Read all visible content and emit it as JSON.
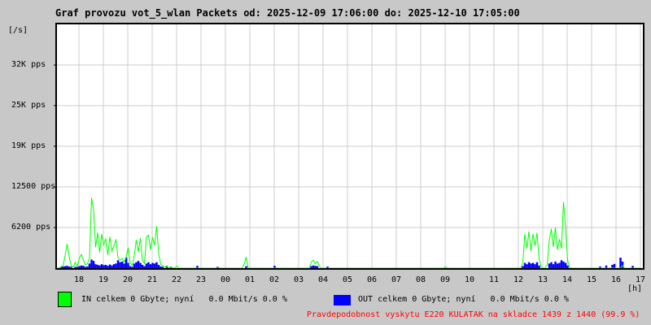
{
  "page": {
    "background": "#c8c8c8"
  },
  "title": "Graf provozu vot_5_wlan Packets od: 2025-12-09 17:06:00 do: 2025-12-10 17:05:00",
  "unit_label": "[/s]",
  "hour_unit_label": "[h]",
  "y_axis": {
    "labels": [
      "32K pps",
      "25K pps",
      "19K pps",
      "12500 pps",
      "6200 pps"
    ]
  },
  "x_axis": {
    "labels": [
      "18",
      "19",
      "20",
      "21",
      "22",
      "23",
      "00",
      "01",
      "02",
      "03",
      "04",
      "05",
      "06",
      "07",
      "08",
      "09",
      "10",
      "11",
      "12",
      "13",
      "14",
      "15",
      "16",
      "17"
    ]
  },
  "legend": {
    "in_label": "IN celkem 0 Gbyte; nyní   0.0 Mbit/s 0.0 %",
    "out_label": "OUT celkem 0 Gbyte; nyní   0.0 Mbit/s 0.0 %"
  },
  "status_text": "Pravdepodobnost vyskytu E220 KULATAK na skladce 1439 z 1440 (99.9 %)",
  "colors": {
    "in": "#00ff00",
    "out": "#0000ff",
    "status": "#ff0000",
    "grid": "#cccccc",
    "frame": "#000000",
    "plot_bg": "#ffffff"
  },
  "chart_data": {
    "type": "line",
    "title": "Graf provozu vot_5_wlan Packets",
    "period_start": "2025-12-09 17:06:00",
    "period_end": "2025-12-10 17:05:00",
    "xlabel": "[h]",
    "ylabel": "[/s] (packets per second)",
    "samples": 288,
    "sample_minutes": 5,
    "first_hour_mark_minute_offset": 54,
    "ylim": [
      0,
      37200
    ],
    "y_gridline_values_pps": [
      6200,
      12400,
      18600,
      24800,
      31000
    ],
    "y_gridline_labels": [
      "6200 pps",
      "12500 pps",
      "19K pps",
      "25K pps",
      "32K pps"
    ],
    "grid": true,
    "legend_position": "bottom",
    "series": [
      {
        "name": "IN",
        "style": "line",
        "color": "#00ff00",
        "unit": "pps",
        "totals": "IN celkem 0 Gbyte; nyní   0.0 Mbit/s 0.0 %",
        "points": [
          [
            2,
            200
          ],
          [
            3,
            400
          ],
          [
            4,
            1900
          ],
          [
            5,
            3700
          ],
          [
            6,
            1800
          ],
          [
            7,
            300
          ],
          [
            8,
            150
          ],
          [
            9,
            900
          ],
          [
            10,
            300
          ],
          [
            11,
            1500
          ],
          [
            12,
            2100
          ],
          [
            13,
            1200
          ],
          [
            14,
            500
          ],
          [
            15,
            700
          ],
          [
            16,
            1500
          ],
          [
            17,
            10700
          ],
          [
            18,
            8900
          ],
          [
            19,
            3200
          ],
          [
            20,
            5400
          ],
          [
            21,
            2400
          ],
          [
            22,
            5200
          ],
          [
            23,
            3600
          ],
          [
            24,
            4500
          ],
          [
            25,
            2000
          ],
          [
            26,
            4800
          ],
          [
            27,
            2600
          ],
          [
            28,
            3400
          ],
          [
            29,
            4400
          ],
          [
            30,
            1600
          ],
          [
            31,
            1200
          ],
          [
            32,
            1500
          ],
          [
            33,
            900
          ],
          [
            34,
            1700
          ],
          [
            35,
            3100
          ],
          [
            36,
            800
          ],
          [
            37,
            400
          ],
          [
            38,
            1900
          ],
          [
            39,
            4300
          ],
          [
            40,
            2500
          ],
          [
            41,
            4600
          ],
          [
            42,
            1200
          ],
          [
            43,
            700
          ],
          [
            44,
            4800
          ],
          [
            45,
            5000
          ],
          [
            46,
            2800
          ],
          [
            47,
            4700
          ],
          [
            48,
            3500
          ],
          [
            49,
            6400
          ],
          [
            50,
            2200
          ],
          [
            51,
            600
          ],
          [
            52,
            300
          ],
          [
            53,
            150
          ],
          [
            54,
            400
          ],
          [
            56,
            200
          ],
          [
            58,
            100
          ],
          [
            59,
            300
          ],
          [
            92,
            600
          ],
          [
            93,
            1700
          ],
          [
            125,
            900
          ],
          [
            126,
            1200
          ],
          [
            127,
            700
          ],
          [
            128,
            1000
          ],
          [
            129,
            300
          ],
          [
            191,
            200
          ],
          [
            229,
            800
          ],
          [
            230,
            5200
          ],
          [
            231,
            3000
          ],
          [
            232,
            5600
          ],
          [
            233,
            2600
          ],
          [
            234,
            5200
          ],
          [
            235,
            3400
          ],
          [
            236,
            5400
          ],
          [
            237,
            1400
          ],
          [
            238,
            200
          ],
          [
            241,
            500
          ],
          [
            242,
            4200
          ],
          [
            243,
            6000
          ],
          [
            244,
            3200
          ],
          [
            245,
            6200
          ],
          [
            246,
            2800
          ],
          [
            247,
            4400
          ],
          [
            248,
            3000
          ],
          [
            249,
            10100
          ],
          [
            250,
            6200
          ],
          [
            251,
            1200
          ],
          [
            252,
            100
          ],
          [
            278,
            400
          ]
        ]
      },
      {
        "name": "OUT",
        "style": "bar",
        "color": "#0000ff",
        "unit": "pps",
        "totals": "OUT celkem 0 Gbyte; nyní   0.0 Mbit/s 0.0 %",
        "points": [
          [
            2,
            150
          ],
          [
            3,
            250
          ],
          [
            4,
            300
          ],
          [
            5,
            350
          ],
          [
            6,
            250
          ],
          [
            7,
            100
          ],
          [
            9,
            200
          ],
          [
            10,
            150
          ],
          [
            11,
            300
          ],
          [
            12,
            400
          ],
          [
            13,
            350
          ],
          [
            14,
            200
          ],
          [
            15,
            250
          ],
          [
            16,
            700
          ],
          [
            17,
            1300
          ],
          [
            18,
            1100
          ],
          [
            19,
            600
          ],
          [
            20,
            500
          ],
          [
            21,
            400
          ],
          [
            22,
            600
          ],
          [
            23,
            450
          ],
          [
            24,
            500
          ],
          [
            25,
            350
          ],
          [
            26,
            550
          ],
          [
            27,
            400
          ],
          [
            28,
            600
          ],
          [
            29,
            700
          ],
          [
            30,
            1200
          ],
          [
            31,
            900
          ],
          [
            32,
            1000
          ],
          [
            33,
            700
          ],
          [
            34,
            1600
          ],
          [
            35,
            800
          ],
          [
            36,
            300
          ],
          [
            37,
            200
          ],
          [
            38,
            700
          ],
          [
            39,
            900
          ],
          [
            40,
            1100
          ],
          [
            41,
            800
          ],
          [
            42,
            500
          ],
          [
            43,
            300
          ],
          [
            44,
            700
          ],
          [
            45,
            900
          ],
          [
            46,
            600
          ],
          [
            47,
            800
          ],
          [
            48,
            700
          ],
          [
            49,
            900
          ],
          [
            50,
            500
          ],
          [
            51,
            250
          ],
          [
            52,
            150
          ],
          [
            54,
            200
          ],
          [
            56,
            100
          ],
          [
            69,
            350
          ],
          [
            79,
            200
          ],
          [
            93,
            300
          ],
          [
            107,
            350
          ],
          [
            125,
            300
          ],
          [
            126,
            400
          ],
          [
            127,
            350
          ],
          [
            128,
            300
          ],
          [
            133,
            250
          ],
          [
            229,
            300
          ],
          [
            230,
            800
          ],
          [
            231,
            600
          ],
          [
            232,
            900
          ],
          [
            233,
            700
          ],
          [
            234,
            800
          ],
          [
            235,
            600
          ],
          [
            236,
            900
          ],
          [
            237,
            400
          ],
          [
            242,
            700
          ],
          [
            243,
            900
          ],
          [
            244,
            600
          ],
          [
            245,
            1000
          ],
          [
            246,
            700
          ],
          [
            247,
            800
          ],
          [
            248,
            1200
          ],
          [
            249,
            1000
          ],
          [
            250,
            800
          ],
          [
            251,
            400
          ],
          [
            267,
            250
          ],
          [
            270,
            400
          ],
          [
            273,
            500
          ],
          [
            274,
            650
          ],
          [
            277,
            1600
          ],
          [
            278,
            1000
          ],
          [
            283,
            350
          ]
        ]
      }
    ]
  }
}
